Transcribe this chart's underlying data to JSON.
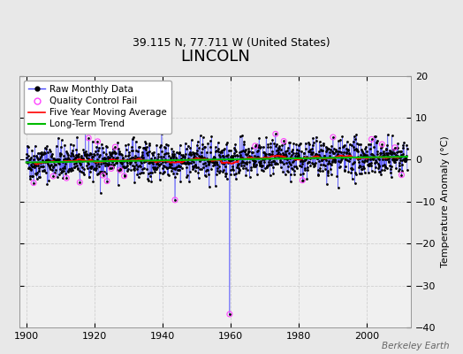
{
  "title": "LINCOLN",
  "subtitle": "39.115 N, 77.711 W (United States)",
  "ylabel": "Temperature Anomaly (°C)",
  "xlim": [
    1898,
    2013
  ],
  "ylim": [
    -40,
    20
  ],
  "yticks": [
    -40,
    -30,
    -20,
    -10,
    0,
    10,
    20
  ],
  "xticks": [
    1900,
    1920,
    1940,
    1960,
    1980,
    2000
  ],
  "plot_bg": "#f0f0f0",
  "fig_bg": "#e8e8e8",
  "grid_color": "#d0d0d0",
  "raw_line_color": "#4444ff",
  "raw_dot_color": "#000000",
  "qc_fail_color": "#ff44ff",
  "moving_avg_color": "#ff0000",
  "trend_color": "#00bb00",
  "outlier_x": 1959.75,
  "outlier_y": -36.8,
  "seed": 42,
  "x_start": 1900.0,
  "x_end": 2011.917,
  "n_months": 1346,
  "watermark": "Berkeley Earth",
  "title_fontsize": 13,
  "subtitle_fontsize": 9,
  "tick_fontsize": 8,
  "ylabel_fontsize": 8,
  "legend_fontsize": 7.5,
  "noise_std": 2.2,
  "qc_years": [
    1902,
    1908,
    1912,
    1916,
    1918,
    1921,
    1923,
    1924,
    1925,
    1926,
    1928,
    1929,
    1944,
    1967,
    1973,
    1976,
    1981,
    1990,
    2001,
    2005,
    2008,
    2010
  ]
}
